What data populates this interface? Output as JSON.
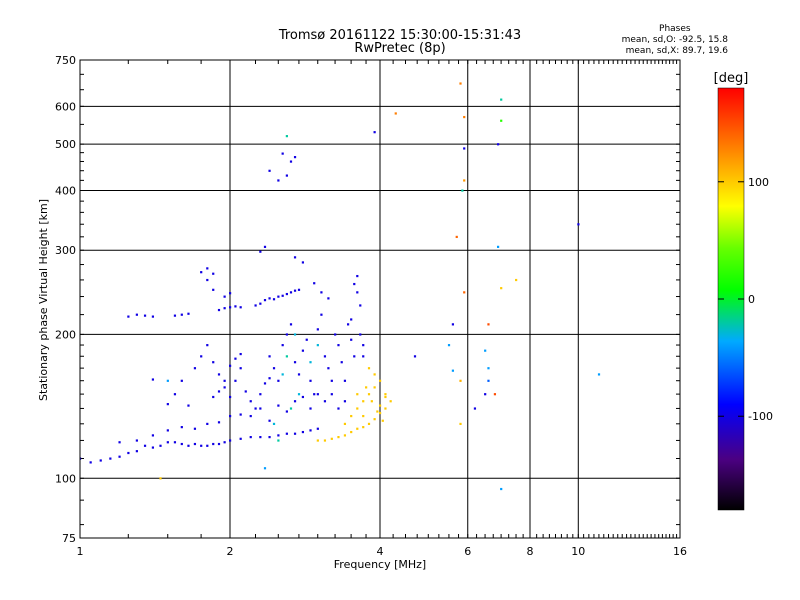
{
  "title_line1": "Tromsø 20161122 15:30:00-15:31:43",
  "title_line2": "RwPretec (8p)",
  "stats": {
    "heading": "Phases",
    "line_o": "mean, sd,O: -92.5, 15.8",
    "line_x": "mean, sd,X:  89.7, 19.6"
  },
  "chart_data": {
    "type": "scatter",
    "title": "Tromsø 20161122 15:30:00-15:31:43",
    "subtitle": "RwPretec (8p)",
    "xlabel": "Frequency [MHz]",
    "ylabel": "Stationary phase Virtual Height [km]",
    "x_scale": "log",
    "y_scale": "log",
    "xlim": [
      1,
      16
    ],
    "ylim": [
      75,
      750
    ],
    "x_ticks": [
      1,
      2,
      4,
      6,
      8,
      10,
      16
    ],
    "x_tick_labels": [
      "1",
      "2",
      "4",
      "6",
      "8",
      "10",
      "16"
    ],
    "y_ticks": [
      75,
      100,
      200,
      300,
      400,
      500,
      600,
      750
    ],
    "y_tick_labels": [
      "75",
      "100",
      "200",
      "300",
      "400",
      "500",
      "600",
      "750"
    ],
    "grid": true,
    "colorbar": {
      "label": "[deg]",
      "range": [
        -180,
        180
      ],
      "ticks": [
        100,
        0,
        -100
      ],
      "tick_labels": [
        "100",
        "0",
        "-100"
      ]
    },
    "series": [
      {
        "name": "O",
        "phase_mean": -92.5,
        "phase_sd": 15.8,
        "points": [
          [
            1.0,
            110,
            -100
          ],
          [
            1.05,
            108,
            -100
          ],
          [
            1.1,
            109,
            -100
          ],
          [
            1.15,
            110,
            -100
          ],
          [
            1.2,
            111,
            -100
          ],
          [
            1.25,
            113,
            -100
          ],
          [
            1.3,
            114,
            -100
          ],
          [
            1.35,
            117,
            -100
          ],
          [
            1.4,
            116,
            -100
          ],
          [
            1.45,
            117,
            -100
          ],
          [
            1.5,
            119,
            -100
          ],
          [
            1.55,
            119,
            -100
          ],
          [
            1.6,
            118,
            -100
          ],
          [
            1.65,
            117,
            -100
          ],
          [
            1.7,
            118,
            -100
          ],
          [
            1.75,
            117,
            -100
          ],
          [
            1.8,
            117,
            -100
          ],
          [
            1.85,
            118,
            -100
          ],
          [
            1.9,
            118,
            -100
          ],
          [
            1.95,
            119,
            -100
          ],
          [
            2.0,
            120,
            -100
          ],
          [
            2.1,
            121,
            -100
          ],
          [
            2.2,
            122,
            -100
          ],
          [
            2.3,
            122,
            -100
          ],
          [
            2.4,
            122,
            -100
          ],
          [
            2.5,
            123,
            -100
          ],
          [
            2.6,
            124,
            -100
          ],
          [
            2.7,
            124,
            -100
          ],
          [
            2.8,
            125,
            -100
          ],
          [
            2.9,
            126,
            -100
          ],
          [
            3.0,
            127,
            -100
          ],
          [
            1.2,
            119,
            -100
          ],
          [
            1.3,
            120,
            -100
          ],
          [
            1.4,
            123,
            -100
          ],
          [
            1.5,
            126,
            -100
          ],
          [
            1.6,
            128,
            -100
          ],
          [
            1.7,
            127,
            -100
          ],
          [
            1.8,
            130,
            -100
          ],
          [
            1.9,
            131,
            -100
          ],
          [
            2.0,
            135,
            -100
          ],
          [
            2.1,
            136,
            -100
          ],
          [
            1.6,
            160,
            -100
          ],
          [
            1.7,
            170,
            -100
          ],
          [
            1.75,
            180,
            -100
          ],
          [
            1.8,
            190,
            -100
          ],
          [
            1.85,
            175,
            -100
          ],
          [
            1.9,
            165,
            -100
          ],
          [
            1.95,
            155,
            -100
          ],
          [
            2.0,
            148,
            -100
          ],
          [
            2.05,
            160,
            -100
          ],
          [
            2.1,
            170,
            -100
          ],
          [
            2.15,
            152,
            -100
          ],
          [
            2.2,
            145,
            -100
          ],
          [
            2.25,
            140,
            -100
          ],
          [
            2.3,
            150,
            -100
          ],
          [
            2.35,
            158,
            -100
          ],
          [
            2.4,
            162,
            -100
          ],
          [
            1.85,
            148,
            -100
          ],
          [
            1.9,
            152,
            -100
          ],
          [
            1.95,
            160,
            -100
          ],
          [
            2.0,
            172,
            -100
          ],
          [
            2.05,
            178,
            -100
          ],
          [
            2.1,
            182,
            -100
          ],
          [
            1.4,
            161,
            -100
          ],
          [
            1.5,
            143,
            -100
          ],
          [
            1.55,
            150,
            -100
          ],
          [
            1.65,
            142,
            -100
          ],
          [
            1.25,
            218,
            -100
          ],
          [
            1.3,
            220,
            -100
          ],
          [
            1.35,
            219,
            -100
          ],
          [
            1.4,
            218,
            -100
          ],
          [
            1.55,
            219,
            -100
          ],
          [
            1.6,
            220,
            -100
          ],
          [
            1.65,
            221,
            -100
          ],
          [
            1.9,
            225,
            -100
          ],
          [
            1.95,
            227,
            -100
          ],
          [
            2.0,
            228,
            -100
          ],
          [
            2.05,
            229,
            -100
          ],
          [
            2.1,
            228,
            -100
          ],
          [
            2.25,
            230,
            -100
          ],
          [
            2.3,
            232,
            -100
          ],
          [
            2.35,
            236,
            -100
          ],
          [
            2.4,
            238,
            -100
          ],
          [
            2.45,
            237,
            -100
          ],
          [
            2.5,
            240,
            -100
          ],
          [
            2.55,
            241,
            -100
          ],
          [
            2.6,
            243,
            -100
          ],
          [
            2.65,
            245,
            -100
          ],
          [
            2.7,
            247,
            -100
          ],
          [
            2.75,
            248,
            -100
          ],
          [
            1.75,
            270,
            -100
          ],
          [
            1.8,
            275,
            -100
          ],
          [
            1.85,
            268,
            -100
          ],
          [
            1.8,
            260,
            -100
          ],
          [
            1.85,
            248,
            -100
          ],
          [
            1.95,
            240,
            -100
          ],
          [
            2.0,
            244,
            -100
          ],
          [
            2.3,
            298,
            -100
          ],
          [
            2.35,
            305,
            -100
          ],
          [
            2.7,
            290,
            -100
          ],
          [
            2.8,
            283,
            -100
          ],
          [
            2.95,
            256,
            -100
          ],
          [
            3.05,
            245,
            -100
          ],
          [
            3.15,
            238,
            -100
          ],
          [
            2.4,
            440,
            -100
          ],
          [
            2.5,
            420,
            -100
          ],
          [
            2.6,
            430,
            -100
          ],
          [
            2.65,
            460,
            -100
          ],
          [
            2.7,
            470,
            -100
          ],
          [
            2.55,
            478,
            -100
          ],
          [
            2.4,
            180,
            -100
          ],
          [
            2.45,
            170,
            -100
          ],
          [
            2.5,
            160,
            -100
          ],
          [
            2.55,
            190,
            -100
          ],
          [
            2.6,
            200,
            -100
          ],
          [
            2.65,
            210,
            -100
          ],
          [
            2.7,
            175,
            -100
          ],
          [
            2.75,
            165,
            -100
          ],
          [
            2.8,
            185,
            -100
          ],
          [
            2.85,
            195,
            -100
          ],
          [
            2.9,
            160,
            -100
          ],
          [
            2.95,
            150,
            -100
          ],
          [
            3.0,
            205,
            -100
          ],
          [
            3.05,
            220,
            -100
          ],
          [
            3.1,
            180,
            -100
          ],
          [
            3.15,
            170,
            -100
          ],
          [
            3.2,
            160,
            -100
          ],
          [
            3.25,
            200,
            -100
          ],
          [
            3.3,
            190,
            -100
          ],
          [
            3.35,
            175,
            -100
          ],
          [
            3.4,
            160,
            -100
          ],
          [
            3.45,
            210,
            -100
          ],
          [
            3.5,
            215,
            -100
          ],
          [
            3.55,
            255,
            -100
          ],
          [
            3.6,
            265,
            -100
          ],
          [
            3.6,
            245,
            -100
          ],
          [
            3.65,
            230,
            -100
          ],
          [
            3.65,
            200,
            -100
          ],
          [
            3.7,
            190,
            -100
          ],
          [
            3.7,
            180,
            -100
          ],
          [
            3.5,
            195,
            -100
          ],
          [
            3.55,
            180,
            -100
          ],
          [
            2.2,
            135,
            -100
          ],
          [
            2.3,
            140,
            -100
          ],
          [
            2.4,
            132,
            -100
          ],
          [
            2.5,
            142,
            -100
          ],
          [
            2.6,
            138,
            -100
          ],
          [
            2.7,
            145,
            -100
          ],
          [
            2.8,
            148,
            -100
          ],
          [
            2.9,
            140,
            -100
          ],
          [
            3.0,
            150,
            -100
          ],
          [
            3.1,
            145,
            -100
          ],
          [
            3.2,
            150,
            -100
          ],
          [
            3.3,
            140,
            -100
          ],
          [
            3.4,
            145,
            -100
          ],
          [
            3.9,
            530,
            -100
          ],
          [
            10.0,
            340,
            -100
          ],
          [
            6.9,
            500,
            -100
          ],
          [
            5.9,
            490,
            -100
          ]
        ]
      },
      {
        "name": "X",
        "phase_mean": 89.7,
        "phase_sd": 19.6,
        "points": [
          [
            3.0,
            120,
            100
          ],
          [
            3.1,
            120,
            100
          ],
          [
            3.2,
            121,
            100
          ],
          [
            3.3,
            122,
            100
          ],
          [
            3.4,
            123,
            100
          ],
          [
            3.5,
            125,
            100
          ],
          [
            3.6,
            127,
            100
          ],
          [
            3.7,
            128,
            100
          ],
          [
            3.8,
            130,
            100
          ],
          [
            3.9,
            133,
            100
          ],
          [
            4.0,
            137,
            100
          ],
          [
            4.1,
            140,
            100
          ],
          [
            3.4,
            130,
            100
          ],
          [
            3.5,
            135,
            100
          ],
          [
            3.6,
            140,
            100
          ],
          [
            3.7,
            145,
            100
          ],
          [
            3.8,
            150,
            100
          ],
          [
            3.9,
            155,
            100
          ],
          [
            4.0,
            160,
            100
          ],
          [
            4.1,
            150,
            100
          ],
          [
            4.2,
            145,
            100
          ],
          [
            3.8,
            170,
            100
          ],
          [
            3.9,
            165,
            100
          ],
          [
            4.0,
            142,
            100
          ],
          [
            4.1,
            148,
            100
          ],
          [
            3.7,
            135,
            100
          ],
          [
            3.6,
            150,
            100
          ],
          [
            3.75,
            155,
            100
          ],
          [
            3.85,
            145,
            100
          ],
          [
            3.95,
            138,
            100
          ],
          [
            4.05,
            132,
            100
          ],
          [
            4.3,
            580,
            130
          ],
          [
            5.8,
            670,
            130
          ],
          [
            5.9,
            570,
            130
          ],
          [
            5.9,
            420,
            120
          ],
          [
            5.9,
            245,
            140
          ],
          [
            6.6,
            210,
            150
          ],
          [
            6.8,
            150,
            150
          ],
          [
            7.0,
            250,
            100
          ],
          [
            7.5,
            260,
            100
          ],
          [
            5.7,
            320,
            140
          ],
          [
            5.8,
            160,
            110
          ],
          [
            5.8,
            130,
            100
          ]
        ]
      },
      {
        "name": "other",
        "points": [
          [
            2.6,
            520,
            -20
          ],
          [
            5.85,
            400,
            -20
          ],
          [
            7.0,
            620,
            -20
          ],
          [
            7.0,
            560,
            20
          ],
          [
            6.9,
            305,
            -40
          ],
          [
            6.5,
            185,
            -40
          ],
          [
            6.6,
            170,
            -40
          ],
          [
            5.5,
            190,
            -40
          ],
          [
            11.0,
            165,
            -40
          ],
          [
            7.0,
            95,
            -40
          ],
          [
            6.6,
            160,
            -60
          ],
          [
            5.6,
            168,
            -40
          ],
          [
            2.35,
            105,
            -40
          ],
          [
            1.45,
            100,
            100
          ],
          [
            1.5,
            160,
            -40
          ],
          [
            2.5,
            120,
            -20
          ],
          [
            2.6,
            180,
            -20
          ],
          [
            2.7,
            200,
            -30
          ],
          [
            2.55,
            165,
            -30
          ],
          [
            2.75,
            150,
            -30
          ],
          [
            2.9,
            175,
            -30
          ],
          [
            3.0,
            190,
            -30
          ],
          [
            2.65,
            140,
            -20
          ],
          [
            2.45,
            130,
            -30
          ],
          [
            4.7,
            180,
            -100
          ],
          [
            6.2,
            140,
            -100
          ],
          [
            6.5,
            150,
            -100
          ],
          [
            5.6,
            210,
            -100
          ]
        ]
      }
    ]
  }
}
